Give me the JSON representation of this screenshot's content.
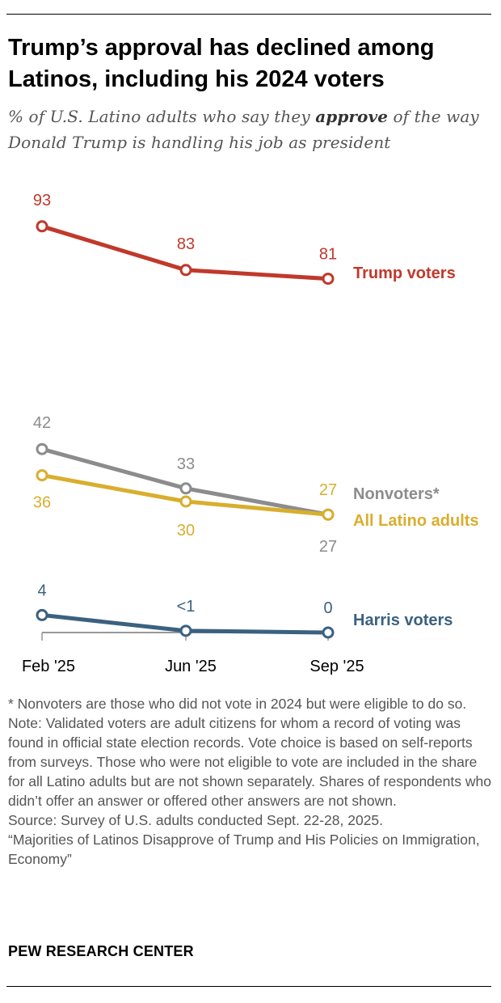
{
  "header": {
    "title": "Trump’s approval has declined among Latinos, including his 2024 voters",
    "subtitle_pre": "% of U.S. Latino adults who say they ",
    "subtitle_emphasis": "approve",
    "subtitle_post": " of the way Donald Trump is handling his job as president"
  },
  "chart_data": {
    "type": "line",
    "categories": [
      "Feb '25",
      "Jun '25",
      "Sep '25"
    ],
    "ylim": [
      0,
      100
    ],
    "grid": false,
    "legend": "direct labels at right",
    "series": [
      {
        "name": "Trump voters",
        "values": [
          93,
          83,
          81
        ],
        "labels": [
          "93",
          "83",
          "81"
        ],
        "color": "#C0392B"
      },
      {
        "name": "Nonvoters*",
        "values": [
          42,
          33,
          27
        ],
        "labels": [
          "42",
          "33",
          "27"
        ],
        "color": "#8C8C8C"
      },
      {
        "name": "All Latino adults",
        "values": [
          36,
          30,
          27
        ],
        "labels": [
          "36",
          "30",
          "27"
        ],
        "color": "#D9AE2E"
      },
      {
        "name": "Harris voters",
        "values": [
          4,
          0.4,
          0
        ],
        "labels": [
          "4",
          "<1",
          "0"
        ],
        "color": "#3B6180"
      }
    ]
  },
  "footer": {
    "footnote": "* Nonvoters are those who did not vote in 2024 but were eligible to do so.",
    "note": "Note: Validated voters are adult citizens for whom a record of voting was found in official state election records. Vote choice is based on self-reports from surveys. Those who were not eligible to vote are included in the share for all Latino adults but are not shown separately. Shares of respondents who didn’t offer an answer or offered other answers are not shown.",
    "source": "Source: Survey of U.S. adults conducted Sept. 22-28, 2025.",
    "report": "“Majorities of Latinos Disapprove of Trump and His Policies on Immigration, Economy”",
    "brand": "PEW RESEARCH CENTER"
  }
}
